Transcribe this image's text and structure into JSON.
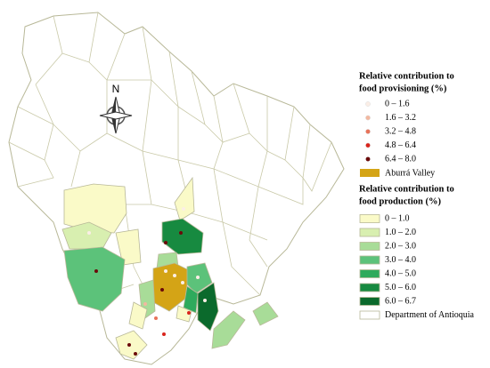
{
  "compass": "N",
  "legend_provisioning": {
    "title_lines": [
      "Relative contribution to",
      "food provisioning  (%)"
    ],
    "items": [
      {
        "label": "0 – 1.6",
        "color": "#fbeee6"
      },
      {
        "label": "1.6 – 3.2",
        "color": "#f3b8a0"
      },
      {
        "label": "3.2 – 4.8",
        "color": "#e8735a"
      },
      {
        "label": "4.8 – 6.4",
        "color": "#d9241c"
      },
      {
        "label": "6.4 – 8.0",
        "color": "#6b0a0a"
      }
    ],
    "valley": {
      "label": "Aburrá Valley",
      "color": "#d4a416"
    }
  },
  "legend_production": {
    "title_lines": [
      "Relative contribution to",
      "food production (%)"
    ],
    "items": [
      {
        "label": "0 – 1.0",
        "color": "#fafac8"
      },
      {
        "label": "1.0 – 2.0",
        "color": "#d8efb0"
      },
      {
        "label": "2.0 – 3.0",
        "color": "#a8dc98"
      },
      {
        "label": "3.0 – 4.0",
        "color": "#5cc27a"
      },
      {
        "label": "4.0 – 5.0",
        "color": "#2eaa5c"
      },
      {
        "label": "5.0 – 6.0",
        "color": "#178a40"
      },
      {
        "label": "6.0 – 6.7",
        "color": "#0b6a2c"
      }
    ],
    "department": {
      "label": "Department of Antioquia",
      "color": "#ffffff"
    }
  }
}
